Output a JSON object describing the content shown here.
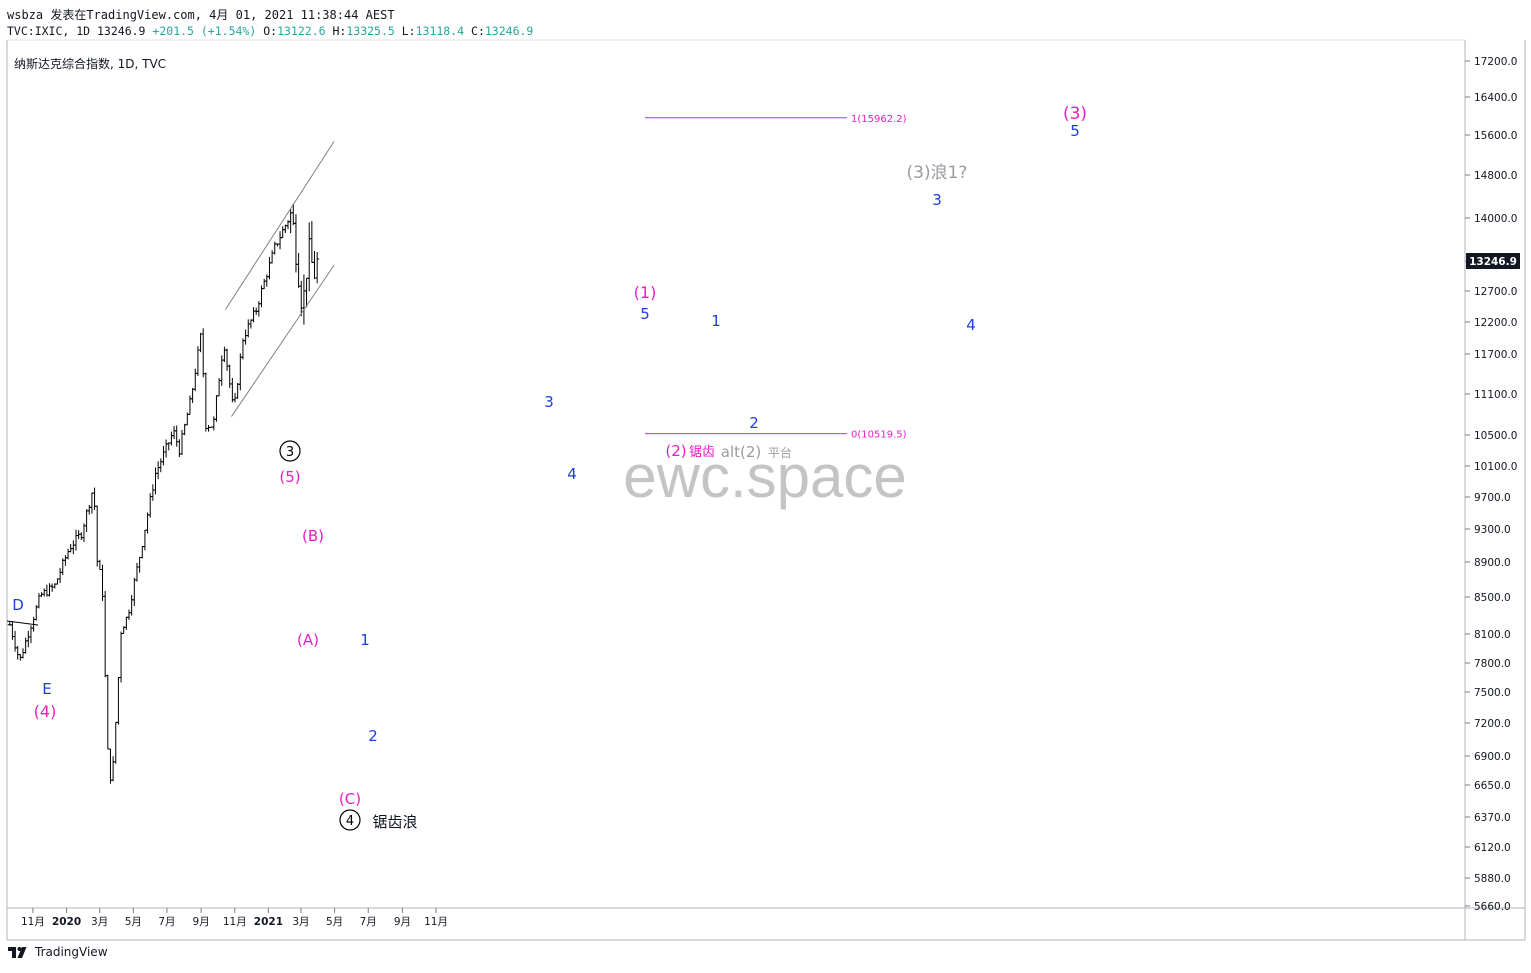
{
  "header": {
    "line1": "wsbza 发表在TradingView.com, 4月 01, 2021 11:38:44 AEST",
    "symbol_prefix": "TVC:IXIC, 1D 13246.9",
    "change": "+201.5 (+1.54%)",
    "o_label": "O:",
    "o_value": "13122.6",
    "h_label": "H:",
    "h_value": "13325.5",
    "l_label": "L:",
    "l_value": "13118.4",
    "c_label": "C:",
    "c_value": "13246.9"
  },
  "symbol_label": "纳斯达克综合指数, 1D, TVC",
  "footer": {
    "logo_text": "TradingView"
  },
  "colors": {
    "wave_blue": "#1e3edb",
    "wave_magenta": "#e91ec8",
    "wave_gray": "#9b9ba0",
    "price_tag": "#131722",
    "up": "#26a69a",
    "line": "#000000"
  },
  "chart_data": {
    "type": "ohlc",
    "symbol": "TVC:IXIC",
    "interval": "1D",
    "last_price_tag": "13246.9",
    "y_ticks": [
      "17200.0",
      "16400.0",
      "15600.0",
      "14800.0",
      "14000.0",
      "13246.9",
      "12700.0",
      "12200.0",
      "11700.0",
      "11100.0",
      "10500.0",
      "10100.0",
      "9700.0",
      "9300.0",
      "8900.0",
      "8500.0",
      "8100.0",
      "7800.0",
      "7500.0",
      "7200.0",
      "6900.0",
      "6650.0",
      "6370.0",
      "6120.0",
      "5880.0",
      "5660.0"
    ],
    "x_ticks": [
      "11月",
      "2020",
      "3月",
      "5月",
      "7月",
      "9月",
      "11月",
      "2021",
      "3月",
      "5月",
      "7月",
      "9月",
      "11月"
    ],
    "series_points": [
      [
        "2019-09-20",
        8200
      ],
      [
        "2019-10-08",
        7820
      ],
      [
        "2019-10-24",
        8120
      ],
      [
        "2019-11-15",
        8520
      ],
      [
        "2019-12-10",
        8620
      ],
      [
        "2020-01-06",
        9070
      ],
      [
        "2020-01-28",
        9250
      ],
      [
        "2020-02-19",
        9838
      ],
      [
        "2020-02-28",
        8567
      ],
      [
        "2020-03-04",
        9000
      ],
      [
        "2020-03-09",
        7950
      ],
      [
        "2020-03-16",
        6904
      ],
      [
        "2020-03-23",
        6631
      ],
      [
        "2020-04-01",
        7350
      ],
      [
        "2020-04-09",
        8150
      ],
      [
        "2020-04-21",
        8300
      ],
      [
        "2020-05-15",
        9050
      ],
      [
        "2020-06-10",
        10000
      ],
      [
        "2020-07-13",
        10550
      ],
      [
        "2020-07-24",
        10300
      ],
      [
        "2020-08-14",
        11050
      ],
      [
        "2020-09-02",
        12074
      ],
      [
        "2020-09-08",
        10650
      ],
      [
        "2020-09-23",
        10633
      ],
      [
        "2020-10-12",
        11900
      ],
      [
        "2020-10-30",
        10822
      ],
      [
        "2020-11-16",
        11950
      ],
      [
        "2020-12-10",
        12400
      ],
      [
        "2021-01-13",
        13500
      ],
      [
        "2021-02-12",
        14095
      ],
      [
        "2021-03-04",
        12400
      ],
      [
        "2021-03-15",
        13450
      ],
      [
        "2021-03-25",
        13000
      ],
      [
        "2021-03-31",
        13246.9
      ]
    ],
    "fib_levels": [
      {
        "label": "1(15962.2)",
        "value": 15962.2
      },
      {
        "label": "0(10519.5)",
        "value": 10519.5
      }
    ],
    "channel": {
      "upper": [
        [
          "2020-10-15",
          12400
        ],
        [
          "2021-04-30",
          15470
        ]
      ],
      "lower": [
        [
          "2020-10-26",
          10770
        ],
        [
          "2021-04-30",
          13170
        ]
      ]
    },
    "watermark": "ewc.space",
    "annotations": [
      {
        "text": "D",
        "color": "blue"
      },
      {
        "text": "E",
        "color": "blue"
      },
      {
        "text": "(4)",
        "color": "magenta"
      },
      {
        "text": "③",
        "color": "black"
      },
      {
        "text": "(5)",
        "color": "magenta"
      },
      {
        "text": "(B)",
        "color": "magenta"
      },
      {
        "text": "(A)",
        "color": "magenta"
      },
      {
        "text": "(C)",
        "color": "magenta"
      },
      {
        "text": "④",
        "color": "black"
      },
      {
        "text": "锯齿浪",
        "color": "black"
      },
      {
        "text": "1",
        "color": "blue"
      },
      {
        "text": "2",
        "color": "blue"
      },
      {
        "text": "3",
        "color": "blue"
      },
      {
        "text": "4",
        "color": "blue"
      },
      {
        "text": "(1)",
        "color": "magenta"
      },
      {
        "text": "5",
        "color": "blue"
      },
      {
        "text": "(2)",
        "color": "magenta"
      },
      {
        "text": "锯齿",
        "color": "magenta"
      },
      {
        "text": "alt(2)",
        "color": "gray"
      },
      {
        "text": "平台",
        "color": "gray"
      },
      {
        "text": "1",
        "color": "blue"
      },
      {
        "text": "2",
        "color": "blue"
      },
      {
        "text": "3",
        "color": "blue"
      },
      {
        "text": "(3)浪1?",
        "color": "gray"
      },
      {
        "text": "4",
        "color": "blue"
      },
      {
        "text": "(3)",
        "color": "magenta"
      },
      {
        "text": "5",
        "color": "blue"
      }
    ]
  }
}
